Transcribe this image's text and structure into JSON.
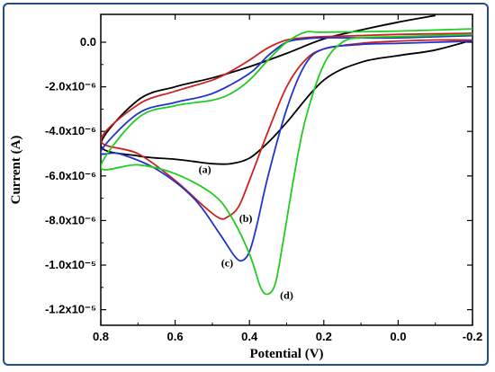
{
  "chart_data": {
    "type": "line",
    "title": "",
    "xlabel": "Potential (V)",
    "ylabel": "Current (A)",
    "xlim": [
      0.8,
      -0.2
    ],
    "ylim": [
      -1.27e-05,
      1.25e-06
    ],
    "x_ticks": [
      0.8,
      0.6,
      0.4,
      0.2,
      0.0,
      -0.2
    ],
    "x_tick_labels": [
      "0.8",
      "0.6",
      "0.4",
      "0.2",
      "0.0",
      "-0.2"
    ],
    "y_ticks": [
      0.0,
      -2e-06,
      -4e-06,
      -6e-06,
      -8e-06,
      -1e-05,
      -1.2e-05
    ],
    "y_tick_labels": [
      "0.0",
      "-2.0x10⁻⁶",
      "-4.0x10⁻⁶",
      "-6.0x10⁻⁶",
      "-8.0x10⁻⁶",
      "-1.0x10⁻⁵",
      "-1.2x10⁻⁵"
    ],
    "grid": false,
    "legend": "none",
    "series": [
      {
        "label": "(a)",
        "color": "#000000",
        "label_at": [
          0.52,
          -5.7e-06
        ],
        "x": [
          -0.2,
          -0.1,
          0.0,
          0.1,
          0.2,
          0.3,
          0.35,
          0.4,
          0.45,
          0.5,
          0.55,
          0.6,
          0.7,
          0.8,
          0.7,
          0.6,
          0.5,
          0.4,
          0.3,
          0.2,
          0.1,
          0.0,
          -0.1
        ],
        "y": [
          1e-07,
          -3.5e-07,
          -6e-07,
          -9e-07,
          -1.7e-06,
          -3.6e-06,
          -4.5e-06,
          -5.2e-06,
          -5.45e-06,
          -5.45e-06,
          -5.35e-06,
          -5.25e-06,
          -5.1e-06,
          -4.6e-06,
          -2.6e-06,
          -2e-06,
          -1.6e-06,
          -1.1e-06,
          -5e-07,
          1.5e-07,
          5.5e-07,
          9e-07,
          1.2e-06
        ]
      },
      {
        "label": "(b)",
        "color": "#cc2222",
        "label_at": [
          0.41,
          -7.9e-06
        ],
        "x": [
          -0.2,
          -0.1,
          0.0,
          0.1,
          0.2,
          0.25,
          0.3,
          0.35,
          0.4,
          0.43,
          0.46,
          0.48,
          0.52,
          0.6,
          0.7,
          0.8,
          0.7,
          0.6,
          0.5,
          0.45,
          0.4,
          0.35,
          0.3,
          0.25,
          0.2,
          0.1,
          0.0,
          -0.2
        ],
        "y": [
          1e-07,
          1e-07,
          5e-08,
          -5e-08,
          -3e-07,
          -8e-07,
          -2e-06,
          -4e-06,
          -6.2e-06,
          -7.4e-06,
          -7.85e-06,
          -7.9e-06,
          -7.4e-06,
          -6.2e-06,
          -5e-06,
          -4.4e-06,
          -2.8e-06,
          -2.2e-06,
          -1.7e-06,
          -1.3e-06,
          -8e-07,
          -2.5e-07,
          1e-07,
          2e-07,
          2.5e-07,
          3e-07,
          3.5e-07,
          4e-07
        ]
      },
      {
        "label": "(c)",
        "color": "#2233cc",
        "label_at": [
          0.46,
          -9.9e-06
        ],
        "x": [
          -0.2,
          -0.1,
          0.0,
          0.1,
          0.2,
          0.25,
          0.3,
          0.35,
          0.38,
          0.4,
          0.42,
          0.44,
          0.48,
          0.55,
          0.65,
          0.75,
          0.8,
          0.7,
          0.6,
          0.5,
          0.4,
          0.35,
          0.3,
          0.25,
          0.2,
          0.0,
          -0.2
        ],
        "y": [
          5e-08,
          0.0,
          -5e-08,
          -1e-07,
          -3e-07,
          -1e-06,
          -3e-06,
          -6e-06,
          -8.2e-06,
          -9.4e-06,
          -9.8e-06,
          -9.6e-06,
          -8.6e-06,
          -7e-06,
          -5.7e-06,
          -5e-06,
          -4.9e-06,
          -3.2e-06,
          -2.7e-06,
          -2.3e-06,
          -1.4e-06,
          -6e-07,
          0.0,
          1.5e-07,
          2e-07,
          2e-07,
          3e-07
        ]
      },
      {
        "label": "(d)",
        "color": "#22cc22",
        "label_at": [
          0.3,
          -1.135e-05
        ],
        "x": [
          -0.2,
          -0.1,
          0.0,
          0.1,
          0.15,
          0.2,
          0.25,
          0.28,
          0.31,
          0.33,
          0.35,
          0.37,
          0.4,
          0.45,
          0.5,
          0.6,
          0.7,
          0.8,
          0.7,
          0.6,
          0.5,
          0.45,
          0.4,
          0.35,
          0.3,
          0.25,
          0.2,
          0.0,
          -0.2
        ],
        "y": [
          3.5e-07,
          3e-07,
          2.5e-07,
          2e-07,
          0.0,
          -1e-06,
          -3.5e-06,
          -6e-06,
          -9e-06,
          -1.08e-05,
          -1.13e-05,
          -1.1e-05,
          -9.5e-06,
          -7.8e-06,
          -6.8e-06,
          -5.9e-06,
          -5.5e-06,
          -5.6e-06,
          -3.4e-06,
          -2.85e-06,
          -2.6e-06,
          -2.3e-06,
          -1.7e-06,
          -8e-07,
          0.0,
          4.5e-07,
          4.5e-07,
          5e-07,
          6e-07
        ]
      }
    ]
  }
}
